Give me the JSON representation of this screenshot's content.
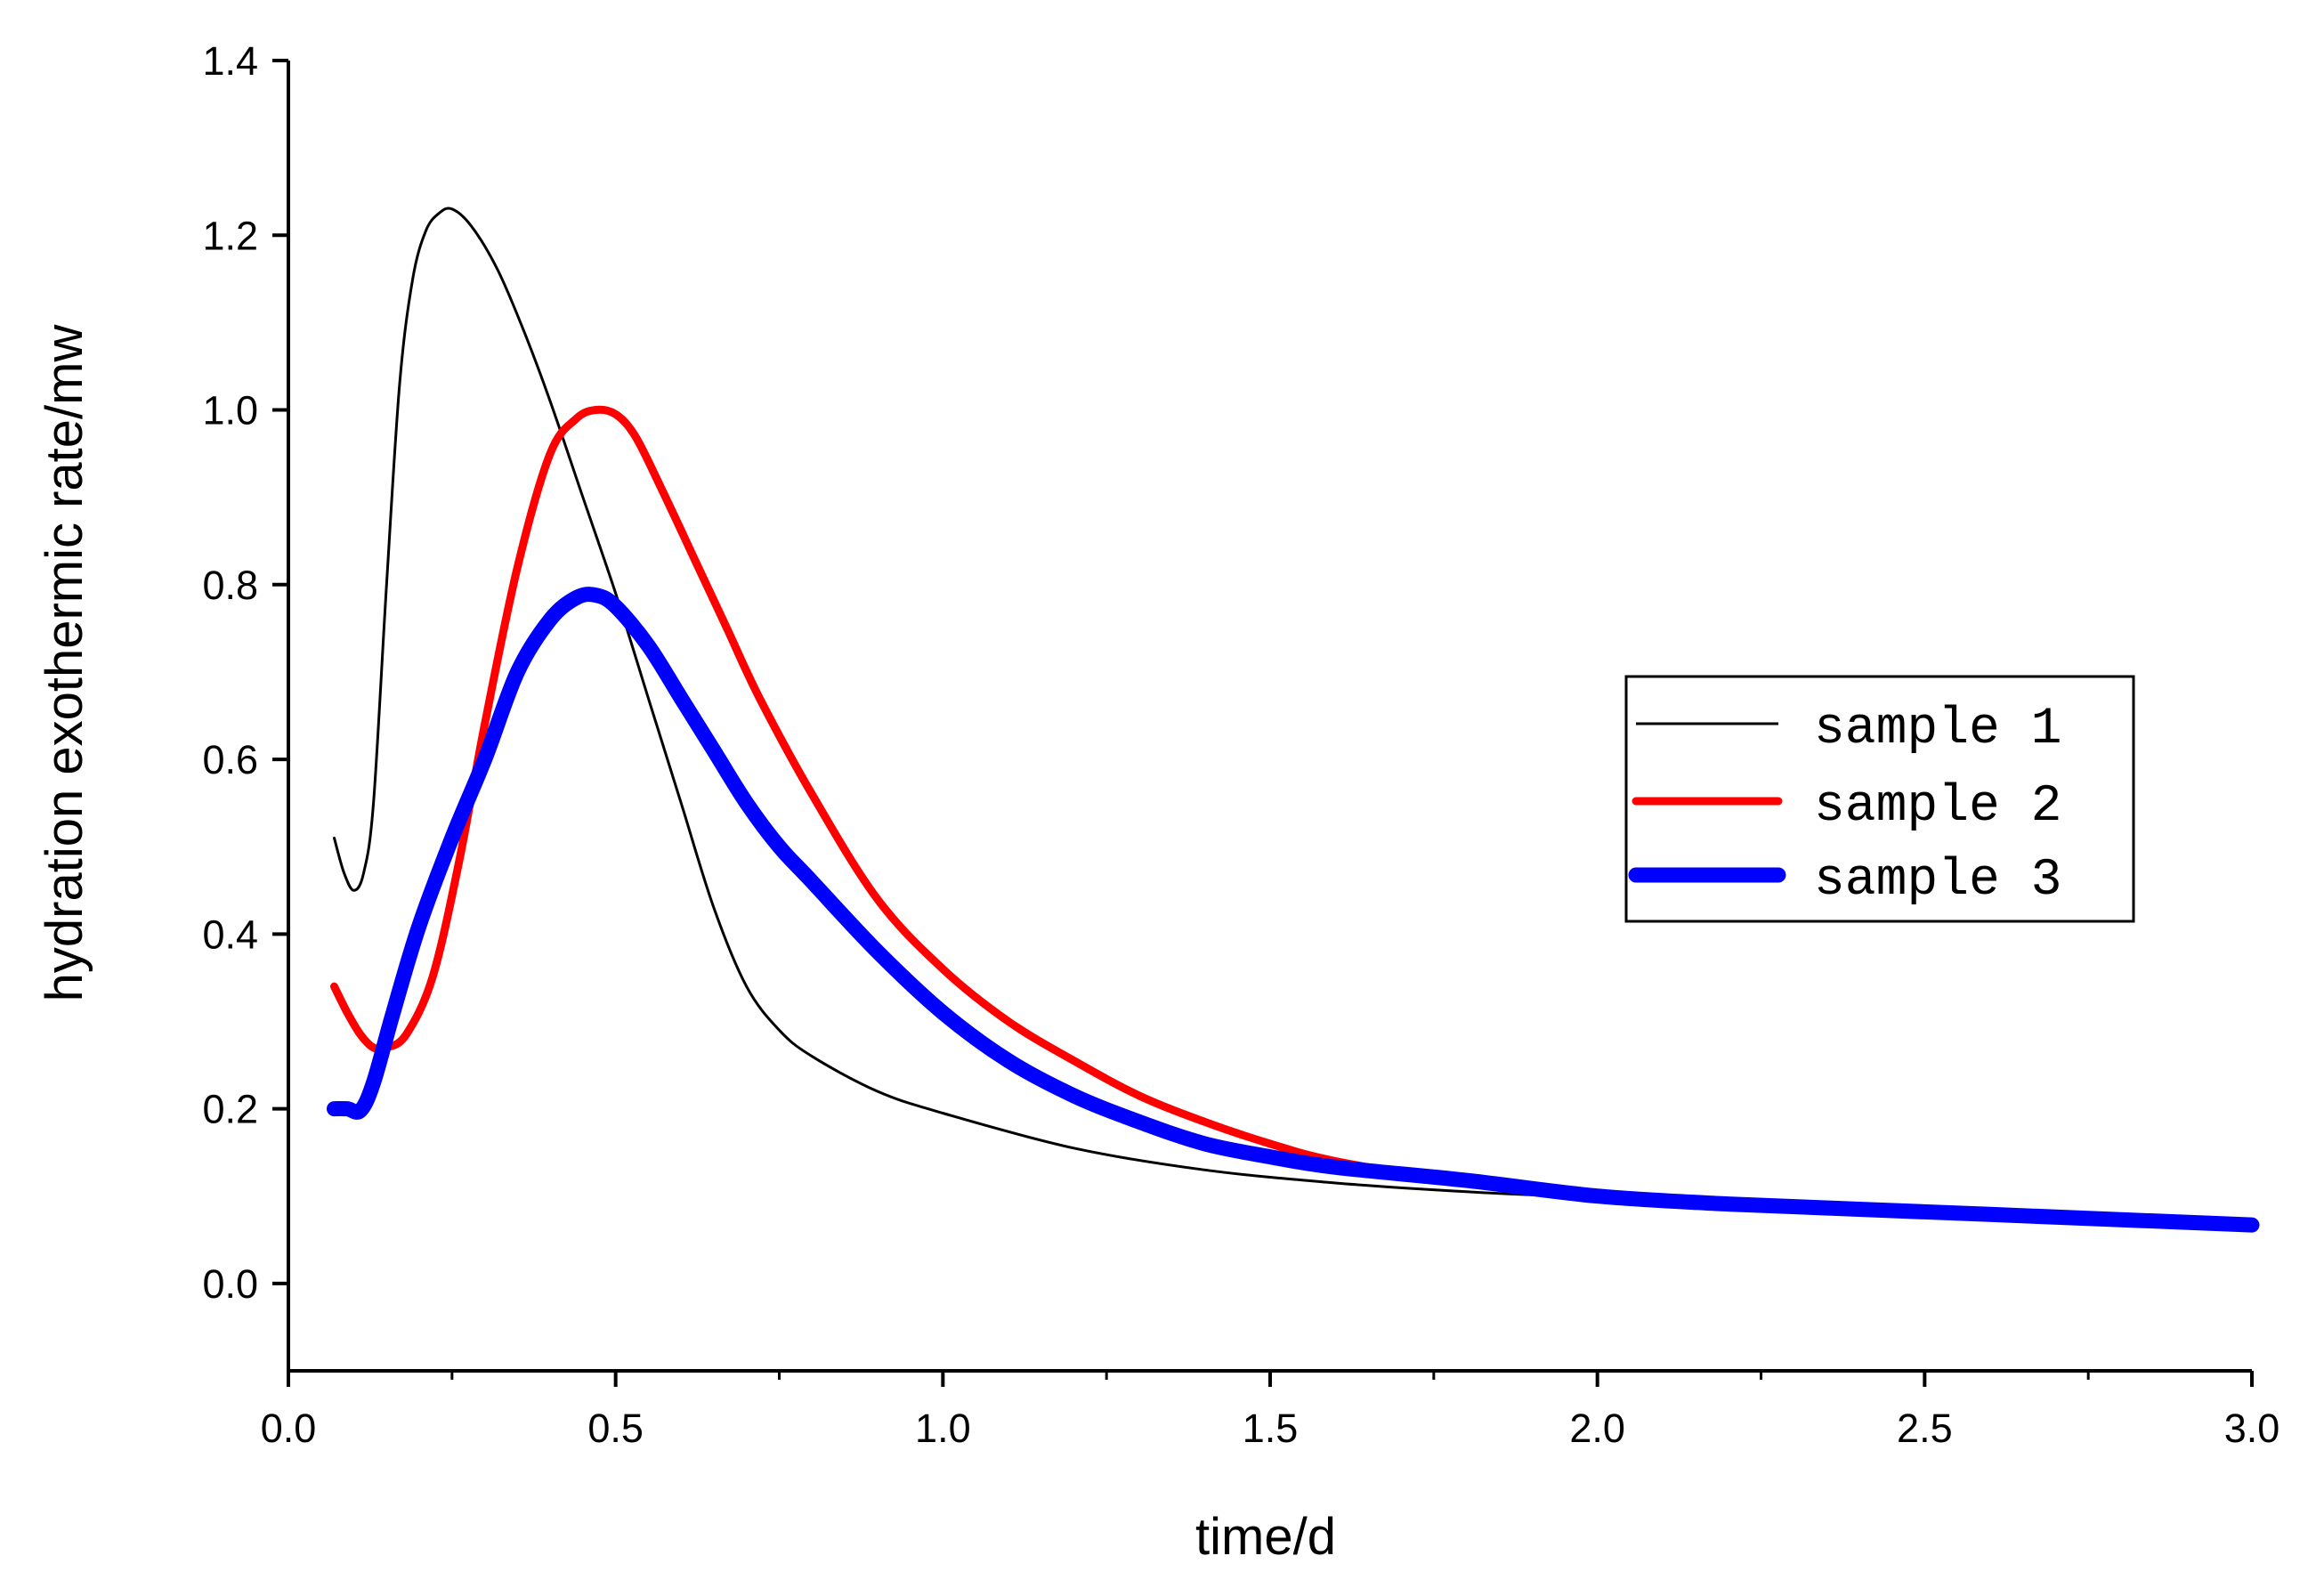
{
  "chart_data": {
    "type": "line",
    "title": "",
    "xlabel": "time/d",
    "ylabel": "hydration exothermic rate/mw",
    "xlim": [
      0.0,
      3.0
    ],
    "ylim": [
      -0.1,
      1.4
    ],
    "xticks": [
      0.0,
      0.5,
      1.0,
      1.5,
      2.0,
      2.5,
      3.0
    ],
    "xtick_labels": [
      "0.0",
      "0.5",
      "1.0",
      "1.5",
      "2.0",
      "2.5",
      "3.0"
    ],
    "yticks": [
      0.0,
      0.2,
      0.4,
      0.6,
      0.8,
      1.0,
      1.2,
      1.4
    ],
    "ytick_labels": [
      "0.0",
      "0.2",
      "0.4",
      "0.6",
      "0.8",
      "1.0",
      "1.2",
      "1.4"
    ],
    "grid": false,
    "legend_position": "center-right",
    "series": [
      {
        "name": "sample 1",
        "color": "#000000",
        "x": [
          0.07,
          0.085,
          0.1,
          0.115,
          0.13,
          0.15,
          0.17,
          0.19,
          0.21,
          0.23,
          0.25,
          0.28,
          0.32,
          0.36,
          0.4,
          0.45,
          0.5,
          0.55,
          0.6,
          0.65,
          0.7,
          0.75,
          0.8,
          0.9,
          1.0,
          1.2,
          1.4,
          1.6,
          1.8,
          2.0,
          2.2,
          2.4,
          2.6,
          2.8,
          3.0
        ],
        "values": [
          0.51,
          0.47,
          0.45,
          0.47,
          0.55,
          0.8,
          1.03,
          1.15,
          1.205,
          1.225,
          1.23,
          1.21,
          1.16,
          1.09,
          1.01,
          0.9,
          0.79,
          0.67,
          0.55,
          0.43,
          0.34,
          0.29,
          0.26,
          0.22,
          0.195,
          0.155,
          0.13,
          0.115,
          0.105,
          0.098,
          0.09,
          0.085,
          0.079,
          0.073,
          0.068
        ]
      },
      {
        "name": "sample 2",
        "color": "#ff0000",
        "x": [
          0.07,
          0.09,
          0.11,
          0.13,
          0.15,
          0.18,
          0.22,
          0.26,
          0.3,
          0.35,
          0.4,
          0.44,
          0.47,
          0.5,
          0.53,
          0.57,
          0.62,
          0.67,
          0.72,
          0.8,
          0.9,
          1.0,
          1.1,
          1.2,
          1.3,
          1.4,
          1.5,
          1.6,
          1.8,
          2.0,
          2.2,
          2.4,
          2.6,
          2.8,
          3.0
        ],
        "values": [
          0.34,
          0.31,
          0.285,
          0.27,
          0.27,
          0.285,
          0.35,
          0.48,
          0.64,
          0.82,
          0.95,
          0.99,
          1.0,
          0.995,
          0.97,
          0.91,
          0.83,
          0.75,
          0.67,
          0.56,
          0.44,
          0.36,
          0.3,
          0.255,
          0.215,
          0.185,
          0.16,
          0.14,
          0.115,
          0.1,
          0.093,
          0.087,
          0.081,
          0.075,
          0.069
        ]
      },
      {
        "name": "sample 3",
        "color": "#0000ff",
        "x": [
          0.07,
          0.09,
          0.11,
          0.13,
          0.16,
          0.2,
          0.25,
          0.3,
          0.35,
          0.4,
          0.44,
          0.47,
          0.5,
          0.55,
          0.6,
          0.65,
          0.7,
          0.75,
          0.8,
          0.9,
          1.0,
          1.1,
          1.2,
          1.3,
          1.4,
          1.5,
          1.6,
          1.8,
          2.0,
          2.2,
          2.4,
          2.6,
          2.8,
          3.0
        ],
        "values": [
          0.2,
          0.2,
          0.198,
          0.23,
          0.31,
          0.41,
          0.51,
          0.6,
          0.7,
          0.76,
          0.785,
          0.788,
          0.775,
          0.73,
          0.67,
          0.61,
          0.55,
          0.5,
          0.46,
          0.38,
          0.31,
          0.255,
          0.215,
          0.185,
          0.16,
          0.145,
          0.133,
          0.118,
          0.1,
          0.091,
          0.085,
          0.079,
          0.073,
          0.067
        ]
      }
    ]
  }
}
